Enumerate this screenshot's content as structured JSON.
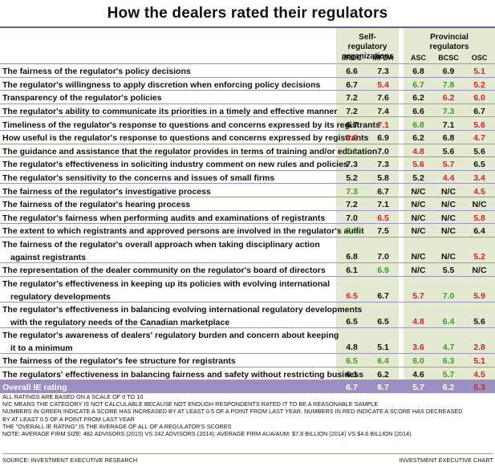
{
  "title": "How the dealers rated their regulators",
  "groups": {
    "self": "Self-regulatory organizations",
    "prov": "Provincial regulators"
  },
  "columns": [
    "IIROC",
    "MFDA",
    "ASC",
    "BCSC",
    "OSC"
  ],
  "colors": {
    "green": "#3f9a2f",
    "red": "#d8232a",
    "purple": "#6f5b99",
    "column_shade": "#e4e9d2"
  },
  "rows": [
    {
      "label": [
        "The fairness of the regulator's policy decisions"
      ],
      "values": [
        "6.6",
        "7.3",
        "6.8",
        "6.9",
        "5.1"
      ],
      "colors": [
        "n",
        "n",
        "n",
        "n",
        "r"
      ]
    },
    {
      "label": [
        "The regulator's willingness to apply discretion when enforcing policy decisions"
      ],
      "values": [
        "6.7",
        "5.4",
        "6.7",
        "7.8",
        "5.2"
      ],
      "colors": [
        "n",
        "r",
        "g",
        "g",
        "r"
      ]
    },
    {
      "label": [
        "Transparency of the regulator's policies"
      ],
      "values": [
        "7.2",
        "7.6",
        "6.2",
        "6.2",
        "6.0"
      ],
      "colors": [
        "n",
        "n",
        "n",
        "r",
        "r"
      ]
    },
    {
      "label": [
        "The regulator's ability to communicate its priorities in a timely and effective manner"
      ],
      "values": [
        "7.2",
        "7.4",
        "6.6",
        "7.3",
        "6.7"
      ],
      "colors": [
        "n",
        "n",
        "n",
        "g",
        "n"
      ]
    },
    {
      "label": [
        "Timeliness of the regulator's response to questions and concerns expressed by its registrants"
      ],
      "values": [
        "6.7",
        "7.1",
        "6.8",
        "7.1",
        "5.6"
      ],
      "colors": [
        "n",
        "r",
        "g",
        "n",
        "r"
      ]
    },
    {
      "label": [
        "How useful is the regulator's response to questions and concerns expressed by registrants"
      ],
      "values": [
        "6.5",
        "6.9",
        "6.2",
        "6.8",
        "4.7"
      ],
      "colors": [
        "r",
        "n",
        "n",
        "n",
        "r"
      ]
    },
    {
      "label": [
        "The guidance and assistance that the regulator provides in terms of training and/or education"
      ],
      "values": [
        "7.2",
        "7.0",
        "4.8",
        "5.6",
        "5.6"
      ],
      "colors": [
        "g",
        "n",
        "r",
        "n",
        "n"
      ]
    },
    {
      "label": [
        "The regulator's effectiveness in soliciting industry comment on new rules and policies"
      ],
      "values": [
        "7.3",
        "7.3",
        "5.6",
        "5.7",
        "6.5"
      ],
      "colors": [
        "n",
        "n",
        "r",
        "r",
        "n"
      ]
    },
    {
      "label": [
        "The regulator's sensitivity to the concerns and issues of small firms"
      ],
      "values": [
        "5.2",
        "5.8",
        "5.2",
        "4.4",
        "3.4"
      ],
      "colors": [
        "n",
        "n",
        "n",
        "r",
        "r"
      ]
    },
    {
      "label": [
        "The fairness of the regulator's investigative process"
      ],
      "values": [
        "7.3",
        "6.7",
        "N/C",
        "N/C",
        "4.5"
      ],
      "colors": [
        "g",
        "n",
        "n",
        "n",
        "r"
      ]
    },
    {
      "label": [
        "The fairness of the regulator's hearing process"
      ],
      "values": [
        "7.2",
        "7.1",
        "N/C",
        "N/C",
        "N/C"
      ],
      "colors": [
        "n",
        "n",
        "n",
        "n",
        "n"
      ]
    },
    {
      "label": [
        "The regulator's fairness when performing audits and examinations of registrants"
      ],
      "values": [
        "7.0",
        "6.5",
        "N/C",
        "N/C",
        "5.8"
      ],
      "colors": [
        "n",
        "r",
        "n",
        "n",
        "r"
      ]
    },
    {
      "label": [
        "The extent to which registrants and approved persons are involved in the regulator's audit"
      ],
      "values": [
        "7.5",
        "7.5",
        "N/C",
        "N/C",
        "6.4"
      ],
      "colors": [
        "g",
        "n",
        "n",
        "n",
        "n"
      ]
    },
    {
      "label": [
        "The fairness of the regulator's overall approach when taking disciplinary action",
        "against registrants"
      ],
      "values": [
        "6.8",
        "7.0",
        "N/C",
        "N/C",
        "5.2"
      ],
      "colors": [
        "n",
        "n",
        "n",
        "n",
        "r"
      ]
    },
    {
      "label": [
        "The representation of the dealer community on the regulator's board of directors"
      ],
      "values": [
        "6.1",
        "6.9",
        "N/C",
        "5.5",
        "N/C"
      ],
      "colors": [
        "n",
        "g",
        "n",
        "n",
        "n"
      ]
    },
    {
      "label": [
        "The regulator's effectiveness in keeping up its policies with evolving international",
        "regulatory developments"
      ],
      "values": [
        "6.5",
        "6.7",
        "5.7",
        "7.0",
        "5.9"
      ],
      "colors": [
        "r",
        "n",
        "r",
        "g",
        "r"
      ]
    },
    {
      "label": [
        "The regulator's effectiveness in balancing evolving international regulatory developments",
        "with the regulatory needs of the Canadian marketplace"
      ],
      "values": [
        "6.5",
        "6.5",
        "4.8",
        "6.4",
        "5.6"
      ],
      "colors": [
        "n",
        "n",
        "r",
        "g",
        "n"
      ]
    },
    {
      "label": [
        "The regulator's awareness of dealers' regulatory burden and concern about keeping",
        "it to a minimum"
      ],
      "values": [
        "4.8",
        "5.1",
        "3.6",
        "4.7",
        "2.8"
      ],
      "colors": [
        "n",
        "n",
        "r",
        "g",
        "r"
      ]
    },
    {
      "label": [
        "The fairness of the regulator's fee structure for registrants"
      ],
      "values": [
        "6.5",
        "6.4",
        "6.0",
        "6.3",
        "5.1"
      ],
      "colors": [
        "g",
        "g",
        "g",
        "g",
        "r"
      ]
    },
    {
      "label": [
        "The regulators' effectiveness in balancing fairness and safety without restricting business"
      ],
      "values": [
        "6.1",
        "6.2",
        "4.6",
        "5.7",
        "4.5"
      ],
      "colors": [
        "n",
        "n",
        "n",
        "g",
        "r"
      ]
    }
  ],
  "overall": {
    "label": "Overall IE rating",
    "values": [
      "6.7",
      "6.7",
      "5.7",
      "6.2",
      "5.3"
    ],
    "colors": [
      "n",
      "n",
      "n",
      "n",
      "r"
    ]
  },
  "notes": [
    "All ratings are based on a scale of 0 to 10",
    "N/C means the category is not calculable because not enough respondents rated it to be a reasonable sample",
    "Numbers in green indicate a score has increased by at least 0.5 of a point from last year. Numbers in red indicate a score has decreased",
    "by at least 0.5 of a point from last year",
    "The \"overall IE rating\" is the average of all of a regulator's scores",
    "Note: average firm size: 482 advisors (2015) vs 242 advisors (2014); average firm AUA/AUM: $7.8 billion (2014) vs $4.6 billion (2014)"
  ],
  "source": "Source: Investment Executive Research",
  "credit": "Investment Executive Chart"
}
